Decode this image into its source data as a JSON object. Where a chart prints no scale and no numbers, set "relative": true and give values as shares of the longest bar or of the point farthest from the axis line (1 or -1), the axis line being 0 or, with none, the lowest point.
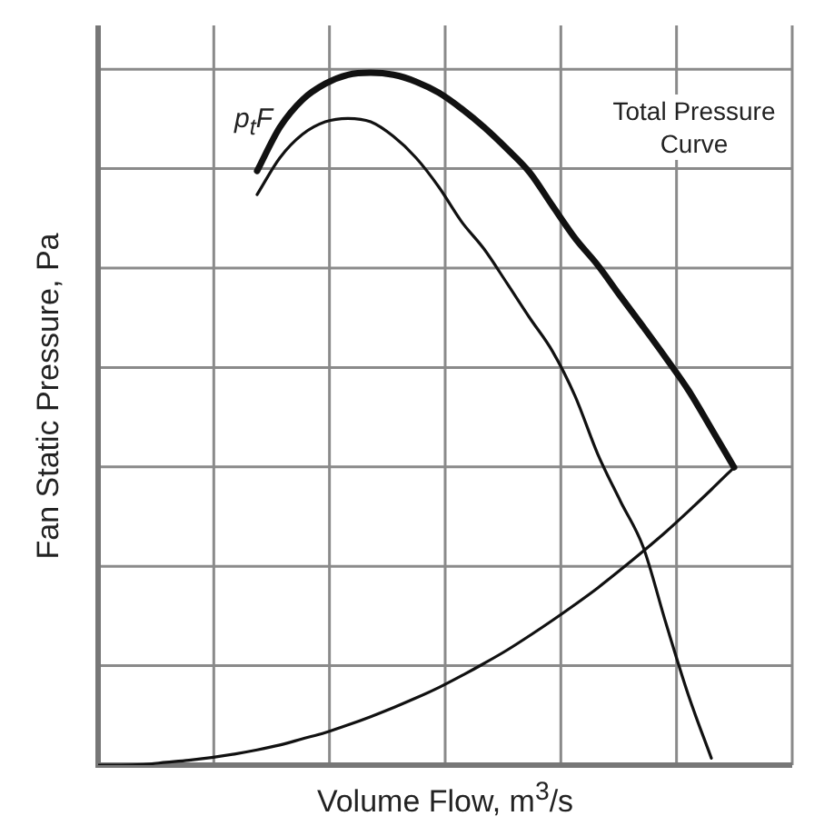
{
  "chart_data": {
    "type": "line",
    "xlabel": "Volume Flow, m$^{3}$/s",
    "ylabel": "Fan Static Pressure, Pa",
    "relative": true,
    "grid": true,
    "marker": "none",
    "legend": false,
    "annotations": [
      "p$_{t}$F",
      "Total Pressure\nCurve"
    ],
    "categories": [
      null,
      null,
      null,
      null,
      null,
      null,
      null,
      null,
      null,
      null,
      null,
      null,
      null,
      null,
      null,
      null,
      null,
      null,
      null,
      null,
      null,
      null,
      null,
      null,
      null,
      null,
      null,
      null,
      null,
      null,
      null
    ],
    "series": [
      {
        "color": "#111111",
        "values": [
          null,
          null,
          null,
          null,
          null,
          null,
          null,
          0.858,
          0.921,
          0.961,
          0.984,
          0.997,
          1.0,
          0.997,
          0.987,
          0.971,
          0.948,
          0.921,
          0.89,
          0.856,
          0.808,
          0.761,
          0.722,
          0.677,
          0.633,
          0.588,
          0.541,
          0.486,
          0.43,
          null,
          null
        ]
      },
      {
        "color": "#111111",
        "values": [
          null,
          null,
          null,
          null,
          null,
          null,
          null,
          0.824,
          0.877,
          0.911,
          0.929,
          0.934,
          0.929,
          0.908,
          0.877,
          0.835,
          0.785,
          0.745,
          0.696,
          0.646,
          0.598,
          0.533,
          0.449,
          0.381,
          0.315,
          0.205,
          0.1,
          0.01,
          null,
          null,
          null
        ]
      },
      {
        "color": "#111111",
        "values": [
          0,
          0,
          0.001,
          0.004,
          0.007,
          0.011,
          0.016,
          0.022,
          0.029,
          0.038,
          0.047,
          0.058,
          0.07,
          0.083,
          0.097,
          0.112,
          0.129,
          0.147,
          0.166,
          0.187,
          0.209,
          0.232,
          0.256,
          0.282,
          0.309,
          0.337,
          0.367,
          0.398,
          0.43,
          null,
          null
        ]
      }
    ]
  }
}
